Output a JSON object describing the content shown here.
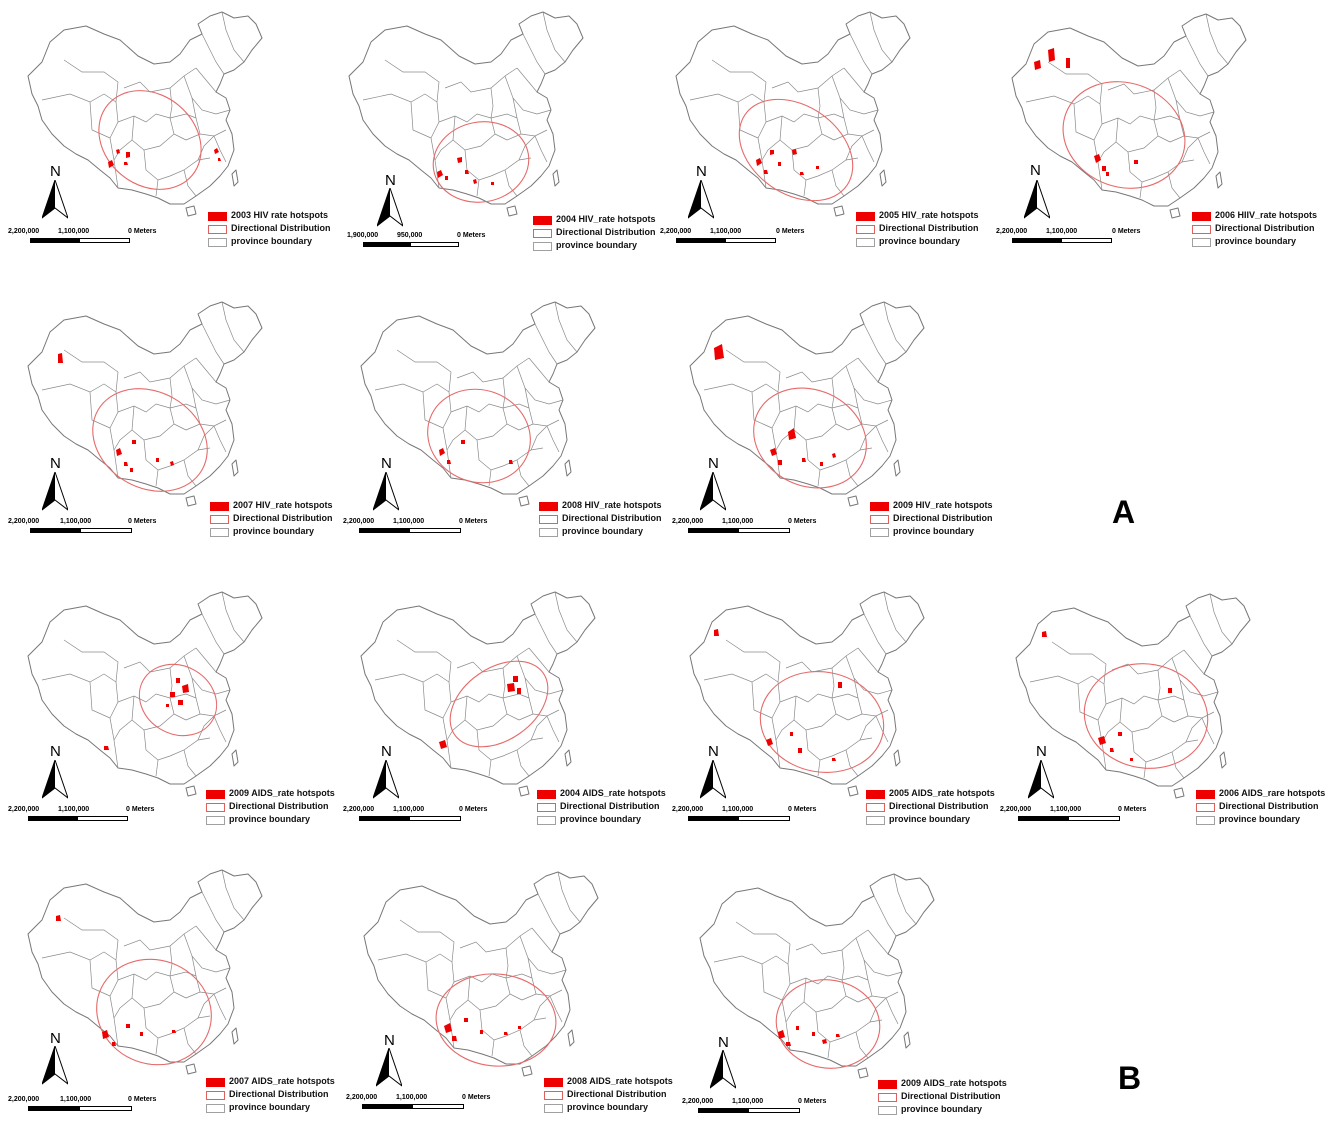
{
  "section_labels": {
    "a": "A",
    "b": "B"
  },
  "legend_common": {
    "directional": "Directional Distribution",
    "province": "province boundary"
  },
  "north_label": "N",
  "colors": {
    "hotspot": "#ee0000",
    "ellipse": "#e66a6a",
    "boundary": "#777777"
  },
  "panels": [
    {
      "hotspots_label": "2003 HIV rate hotspots",
      "scale": [
        "2,200,000",
        "1,100,000",
        "0 Meters"
      ]
    },
    {
      "hotspots_label": "2004 HIV_rate hotspots",
      "scale": [
        "1,900,000",
        "950,000",
        "0 Meters"
      ]
    },
    {
      "hotspots_label": "2005 HIV_rate hotspots",
      "scale": [
        "2,200,000",
        "1,100,000",
        "0 Meters"
      ]
    },
    {
      "hotspots_label": "2006 HIIV_rate hotspots",
      "scale": [
        "2,200,000",
        "1,100,000",
        "0 Meters"
      ]
    },
    {
      "hotspots_label": "2007 HIV_rate hotspots",
      "scale": [
        "2,200,000",
        "1,100,000",
        "0 Meters"
      ]
    },
    {
      "hotspots_label": "2008 HIV_rate hotspots",
      "scale": [
        "2,200,000",
        "1,100,000",
        "0 Meters"
      ]
    },
    {
      "hotspots_label": "2009 HIV_rate hotspots",
      "scale": [
        "2,200,000",
        "1,100,000",
        "0 Meters"
      ]
    },
    {
      "hotspots_label": "2009 AIDS_rate hotspots",
      "scale": [
        "2,200,000",
        "1,100,000",
        "0 Meters"
      ]
    },
    {
      "hotspots_label": "2004 AIDS_rate hotspots",
      "scale": [
        "2,200,000",
        "1,100,000",
        "0 Meters"
      ]
    },
    {
      "hotspots_label": "2005 AIDS_rate hotspots",
      "scale": [
        "2,200,000",
        "1,100,000",
        "0 Meters"
      ]
    },
    {
      "hotspots_label": "2006 AIDS_rare hotspots",
      "scale": [
        "2,200,000",
        "1,100,000",
        "0 Meters"
      ]
    },
    {
      "hotspots_label": "2007 AIDS_rate hotspots",
      "scale": [
        "2,200,000",
        "1,100,000",
        "0 Meters"
      ]
    },
    {
      "hotspots_label": "2008 AIDS_rate hotspots",
      "scale": [
        "2,200,000",
        "1,100,000",
        "0 Meters"
      ]
    },
    {
      "hotspots_label": "2009 AIDS_rate hotspots",
      "scale": [
        "2,200,000",
        "1,100,000",
        "0 Meters"
      ]
    }
  ]
}
